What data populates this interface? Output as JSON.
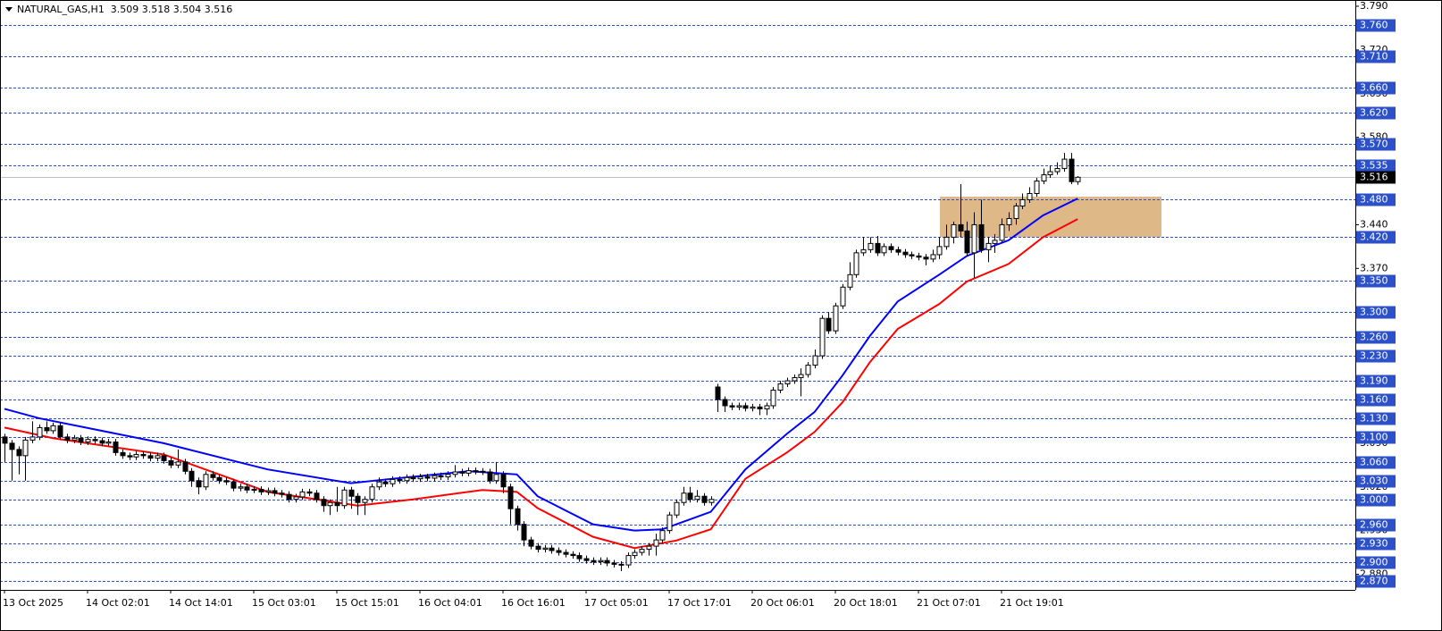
{
  "chart_data": {
    "type": "candlestick",
    "title": "NATURAL_GAS,H1  3.509 3.518 3.504 3.516",
    "categories": [
      "13 Oct 2025",
      null,
      null,
      null,
      null,
      null,
      null,
      null,
      null,
      null,
      null,
      null,
      "14 Oct 02:01",
      null,
      null,
      null,
      null,
      null,
      null,
      null,
      null,
      null,
      null,
      null,
      "14 Oct 14:01",
      null,
      null,
      null,
      null,
      null,
      null,
      null,
      null,
      null,
      null,
      null,
      "15 Oct 03:01",
      null,
      null,
      null,
      null,
      null,
      null,
      null,
      null,
      null,
      null,
      null,
      "15 Oct 15:01",
      null,
      null,
      null,
      null,
      null,
      null,
      null,
      null,
      null,
      null,
      null,
      "16 Oct 04:01",
      null,
      null,
      null,
      null,
      null,
      null,
      null,
      null,
      null,
      null,
      null,
      "16 Oct 16:01",
      null,
      null,
      null,
      null,
      null,
      null,
      null,
      null,
      null,
      null,
      null,
      "17 Oct 05:01",
      null,
      null,
      null,
      null,
      null,
      null,
      null,
      null,
      null,
      null,
      null,
      "17 Oct 17:01",
      null,
      null,
      null,
      null,
      null,
      null,
      null,
      null,
      null,
      null,
      null,
      "20 Oct 06:01",
      null,
      null,
      null,
      null,
      null,
      null,
      null,
      null,
      null,
      null,
      null,
      "20 Oct 18:01",
      null,
      null,
      null,
      null,
      null,
      null,
      null,
      null,
      null,
      null,
      null,
      "21 Oct 07:01",
      null,
      null,
      null,
      null,
      null,
      null,
      null,
      null,
      null,
      null,
      null,
      "21 Oct 19:01",
      null,
      null,
      null,
      null,
      null,
      null,
      null,
      null,
      null,
      null,
      null
    ],
    "open": [
      3.1,
      3.09,
      3.08,
      3.07,
      3.095,
      3.1,
      3.115,
      3.11,
      3.118,
      3.1,
      3.095,
      3.098,
      3.092,
      3.096,
      3.094,
      3.09,
      3.092,
      3.075,
      3.07,
      3.068,
      3.072,
      3.07,
      3.066,
      3.07,
      3.062,
      3.055,
      3.06,
      3.045,
      3.03,
      3.02,
      3.04,
      3.035,
      3.03,
      3.028,
      3.018,
      3.02,
      3.015,
      3.016,
      3.012,
      3.014,
      3.01,
      3.008,
      3.0,
      3.004,
      3.012,
      3.01,
      3.0,
      2.99,
      2.995,
      2.99,
      3.015,
      3.005,
      2.995,
      3.0,
      3.02,
      3.028,
      3.025,
      3.032,
      3.03,
      3.035,
      3.033,
      3.036,
      3.034,
      3.038,
      3.036,
      3.04,
      3.044,
      3.042,
      3.046,
      3.045,
      3.044,
      3.03,
      3.04,
      3.02,
      2.985,
      2.96,
      2.935,
      2.925,
      2.92,
      2.922,
      2.918,
      2.915,
      2.912,
      2.91,
      2.905,
      2.902,
      2.9,
      2.902,
      2.898,
      2.896,
      2.895,
      2.91,
      2.915,
      2.92,
      2.925,
      2.935,
      2.95,
      2.975,
      2.995,
      3.01,
      3.0,
      3.005,
      2.995,
      3.18,
      3.16,
      3.15,
      3.148,
      3.15,
      3.146,
      3.148,
      3.145,
      3.15,
      3.175,
      3.185,
      3.19,
      3.195,
      3.2,
      3.215,
      3.23,
      3.29,
      3.27,
      3.31,
      3.34,
      3.36,
      3.395,
      3.4,
      3.41,
      3.395,
      3.405,
      3.4,
      3.396,
      3.392,
      3.39,
      3.388,
      3.385,
      3.392,
      3.405,
      3.42,
      3.44,
      3.43,
      3.395,
      3.44,
      3.4,
      3.41,
      3.415,
      3.44,
      3.45,
      3.47,
      3.48,
      3.49,
      3.51,
      3.52,
      3.525,
      3.53,
      3.545,
      3.509
    ],
    "high": [
      3.105,
      3.095,
      3.085,
      3.1,
      3.125,
      3.12,
      3.125,
      3.123,
      3.123,
      3.105,
      3.103,
      3.103,
      3.101,
      3.101,
      3.099,
      3.097,
      3.097,
      3.08,
      3.075,
      3.077,
      3.077,
      3.075,
      3.075,
      3.075,
      3.067,
      3.08,
      3.065,
      3.05,
      3.035,
      3.045,
      3.045,
      3.04,
      3.035,
      3.033,
      3.025,
      3.025,
      3.021,
      3.021,
      3.019,
      3.019,
      3.015,
      3.013,
      3.009,
      3.017,
      3.017,
      3.015,
      3.005,
      3.0,
      3.02,
      3.02,
      3.02,
      3.01,
      3.005,
      3.025,
      3.035,
      3.033,
      3.037,
      3.037,
      3.04,
      3.04,
      3.041,
      3.041,
      3.043,
      3.043,
      3.045,
      3.055,
      3.049,
      3.051,
      3.051,
      3.05,
      3.049,
      3.06,
      3.045,
      3.025,
      2.99,
      2.965,
      2.94,
      2.93,
      2.927,
      2.927,
      2.923,
      2.92,
      2.917,
      2.915,
      2.91,
      2.907,
      2.907,
      2.907,
      2.903,
      2.901,
      2.915,
      2.92,
      2.925,
      2.93,
      2.945,
      2.955,
      2.98,
      3.0,
      3.02,
      3.02,
      3.015,
      3.01,
      3.005,
      3.185,
      3.165,
      3.155,
      3.155,
      3.155,
      3.153,
      3.153,
      3.155,
      3.18,
      3.19,
      3.195,
      3.2,
      3.21,
      3.22,
      3.24,
      3.295,
      3.3,
      3.315,
      3.345,
      3.38,
      3.4,
      3.42,
      3.42,
      3.422,
      3.41,
      3.41,
      3.405,
      3.401,
      3.397,
      3.395,
      3.393,
      3.4,
      3.42,
      3.44,
      3.445,
      3.505,
      3.445,
      3.46,
      3.48,
      3.42,
      3.425,
      3.45,
      3.46,
      3.475,
      3.49,
      3.5,
      3.515,
      3.53,
      3.535,
      3.54,
      3.555,
      3.555,
      3.518
    ],
    "low": [
      3.06,
      3.03,
      3.04,
      3.03,
      3.09,
      3.095,
      3.105,
      3.105,
      3.095,
      3.09,
      3.09,
      3.087,
      3.087,
      3.089,
      3.085,
      3.085,
      3.07,
      3.065,
      3.063,
      3.063,
      3.065,
      3.061,
      3.061,
      3.057,
      3.05,
      3.05,
      3.04,
      3.02,
      3.008,
      3.015,
      3.03,
      3.025,
      3.023,
      3.013,
      3.013,
      3.01,
      3.01,
      3.007,
      3.007,
      3.005,
      3.003,
      2.995,
      2.995,
      2.999,
      3.005,
      2.995,
      2.98,
      2.975,
      2.98,
      2.985,
      2.985,
      2.975,
      2.975,
      2.995,
      3.015,
      3.02,
      3.02,
      3.025,
      3.025,
      3.028,
      3.028,
      3.029,
      3.029,
      3.031,
      3.031,
      3.035,
      3.037,
      3.037,
      3.04,
      3.039,
      3.025,
      3.025,
      3.01,
      2.96,
      2.95,
      2.925,
      2.92,
      2.915,
      2.915,
      2.913,
      2.91,
      2.907,
      2.905,
      2.9,
      2.897,
      2.895,
      2.895,
      2.893,
      2.891,
      2.885,
      2.89,
      2.905,
      2.91,
      2.91,
      2.91,
      2.93,
      2.945,
      2.97,
      2.99,
      2.995,
      2.995,
      2.99,
      2.99,
      3.14,
      3.14,
      3.143,
      3.143,
      3.141,
      3.141,
      3.135,
      3.135,
      3.145,
      3.17,
      3.18,
      3.185,
      3.165,
      3.195,
      3.21,
      3.225,
      3.265,
      3.265,
      3.305,
      3.335,
      3.355,
      3.39,
      3.395,
      3.39,
      3.39,
      3.395,
      3.391,
      3.387,
      3.385,
      3.383,
      3.375,
      3.38,
      3.385,
      3.4,
      3.41,
      3.42,
      3.39,
      3.355,
      3.395,
      3.38,
      3.395,
      3.41,
      3.43,
      3.44,
      3.465,
      3.475,
      3.485,
      3.505,
      3.515,
      3.52,
      3.525,
      3.505,
      3.504
    ],
    "close": [
      3.09,
      3.08,
      3.07,
      3.095,
      3.1,
      3.115,
      3.11,
      3.118,
      3.1,
      3.095,
      3.098,
      3.092,
      3.096,
      3.094,
      3.09,
      3.092,
      3.075,
      3.07,
      3.068,
      3.072,
      3.07,
      3.066,
      3.07,
      3.062,
      3.055,
      3.06,
      3.045,
      3.03,
      3.02,
      3.04,
      3.035,
      3.03,
      3.028,
      3.018,
      3.02,
      3.015,
      3.016,
      3.012,
      3.014,
      3.01,
      3.008,
      3.0,
      3.004,
      3.012,
      3.01,
      3.0,
      2.99,
      2.995,
      2.99,
      3.015,
      3.005,
      2.995,
      3.0,
      3.02,
      3.028,
      3.025,
      3.032,
      3.03,
      3.035,
      3.033,
      3.036,
      3.034,
      3.038,
      3.036,
      3.04,
      3.044,
      3.042,
      3.046,
      3.045,
      3.044,
      3.03,
      3.04,
      3.02,
      2.985,
      2.96,
      2.935,
      2.925,
      2.92,
      2.922,
      2.918,
      2.915,
      2.912,
      2.91,
      2.905,
      2.902,
      2.9,
      2.902,
      2.898,
      2.896,
      2.895,
      2.91,
      2.915,
      2.92,
      2.925,
      2.935,
      2.95,
      2.975,
      2.995,
      3.01,
      3.0,
      3.005,
      2.995,
      3.0,
      3.16,
      3.15,
      3.148,
      3.15,
      3.146,
      3.148,
      3.145,
      3.15,
      3.175,
      3.185,
      3.19,
      3.195,
      3.2,
      3.215,
      3.23,
      3.29,
      3.27,
      3.31,
      3.34,
      3.36,
      3.395,
      3.4,
      3.41,
      3.395,
      3.405,
      3.4,
      3.396,
      3.392,
      3.39,
      3.388,
      3.385,
      3.392,
      3.405,
      3.42,
      3.44,
      3.43,
      3.395,
      3.44,
      3.4,
      3.41,
      3.415,
      3.44,
      3.45,
      3.47,
      3.48,
      3.49,
      3.51,
      3.52,
      3.525,
      3.53,
      3.545,
      3.509,
      3.516
    ],
    "bull_color": "#ffffff",
    "bear_color": "#000000",
    "series": [
      {
        "color": "#0000ff",
        "x": [
          0,
          5,
          23,
          38,
          50,
          56,
          67,
          74,
          77,
          85,
          91,
          95,
          102,
          107,
          113,
          117,
          121,
          125,
          129,
          135,
          139,
          145,
          150,
          155
        ],
        "values": [
          3.145,
          3.13,
          3.09,
          3.048,
          3.026,
          3.033,
          3.045,
          3.04,
          3.005,
          2.96,
          2.95,
          2.952,
          2.98,
          3.048,
          3.105,
          3.14,
          3.198,
          3.262,
          3.317,
          3.36,
          3.39,
          3.415,
          3.455,
          3.482
        ]
      },
      {
        "color": "#ff0000",
        "x": [
          0,
          7,
          23,
          38,
          51,
          59,
          69,
          74,
          77,
          85,
          91,
          97,
          102,
          107,
          113,
          117,
          121,
          125,
          129,
          135,
          139,
          145,
          150,
          155
        ],
        "values": [
          3.115,
          3.098,
          3.072,
          3.012,
          2.99,
          3.0,
          3.015,
          3.012,
          2.986,
          2.94,
          2.922,
          2.934,
          2.952,
          3.033,
          3.075,
          3.108,
          3.155,
          3.22,
          3.273,
          3.313,
          3.349,
          3.377,
          3.42,
          3.449
        ]
      }
    ],
    "ylim": [
      2.855,
      3.8
    ],
    "yticks": [
      {
        "value": 3.79,
        "label": "3.790"
      },
      {
        "value": 3.72,
        "label": "3.720"
      },
      {
        "value": 3.65,
        "label": "3.650"
      },
      {
        "value": 3.58,
        "label": "3.580"
      },
      {
        "value": 3.51,
        "label": "3.510"
      },
      {
        "value": 3.44,
        "label": "3.440"
      },
      {
        "value": 3.37,
        "label": "3.370"
      },
      {
        "value": 3.3,
        "label": "3.300"
      },
      {
        "value": 3.23,
        "label": "3.230"
      },
      {
        "value": 3.16,
        "label": "3.160"
      },
      {
        "value": 3.09,
        "label": "3.090"
      },
      {
        "value": 3.02,
        "label": "3.020"
      },
      {
        "value": 2.95,
        "label": "2.950"
      },
      {
        "value": 2.88,
        "label": "2.880"
      }
    ],
    "levels": [
      {
        "value": 3.76,
        "label": "3.760"
      },
      {
        "value": 3.71,
        "label": "3.710"
      },
      {
        "value": 3.66,
        "label": "3.660"
      },
      {
        "value": 3.62,
        "label": "3.620"
      },
      {
        "value": 3.57,
        "label": "3.570"
      },
      {
        "value": 3.535,
        "label": "3.535"
      },
      {
        "value": 3.48,
        "label": "3.480"
      },
      {
        "value": 3.42,
        "label": "3.420"
      },
      {
        "value": 3.35,
        "label": "3.350"
      },
      {
        "value": 3.3,
        "label": "3.300"
      },
      {
        "value": 3.26,
        "label": "3.260"
      },
      {
        "value": 3.23,
        "label": "3.230"
      },
      {
        "value": 3.19,
        "label": "3.190"
      },
      {
        "value": 3.16,
        "label": "3.160"
      },
      {
        "value": 3.13,
        "label": "3.130"
      },
      {
        "value": 3.1,
        "label": "3.100"
      },
      {
        "value": 3.06,
        "label": "3.060"
      },
      {
        "value": 3.03,
        "label": "3.030"
      },
      {
        "value": 3.0,
        "label": "3.000"
      },
      {
        "value": 2.96,
        "label": "2.960"
      },
      {
        "value": 2.93,
        "label": "2.930"
      },
      {
        "value": 2.9,
        "label": "2.900"
      },
      {
        "value": 2.87,
        "label": "2.870"
      }
    ],
    "level_color": "#2b50c8",
    "current_price": {
      "value": 3.516,
      "label": "3.516"
    },
    "zone": {
      "from": 3.42,
      "to": 3.485,
      "color": "#deb887"
    }
  }
}
